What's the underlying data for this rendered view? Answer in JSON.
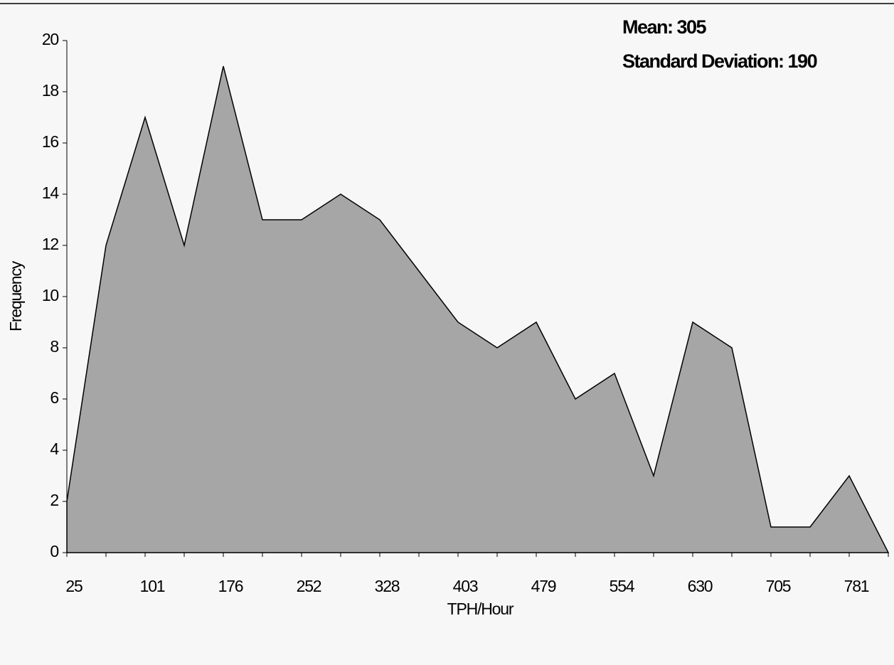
{
  "chart_data": {
    "type": "area",
    "annotations": [
      "Mean: 305",
      "Standard Deviation: 190"
    ],
    "x_label": "TPH/Hour",
    "y_label": "Frequency",
    "categories": [
      "25",
      null,
      "101",
      null,
      "176",
      null,
      "252",
      null,
      "328",
      null,
      "403",
      null,
      "479",
      null,
      "554",
      null,
      "630",
      null,
      "705",
      null,
      "781",
      null
    ],
    "values": [
      2,
      12,
      17,
      12,
      19,
      13,
      13,
      14,
      13,
      11,
      9,
      8,
      9,
      6,
      7,
      3,
      9,
      8,
      1,
      1,
      3,
      0
    ],
    "color": "#a6a6a6",
    "ylim": [
      0,
      20
    ],
    "yticks": [
      0,
      2,
      4,
      6,
      8,
      10,
      12,
      14,
      16,
      18,
      20
    ],
    "grid": false
  }
}
